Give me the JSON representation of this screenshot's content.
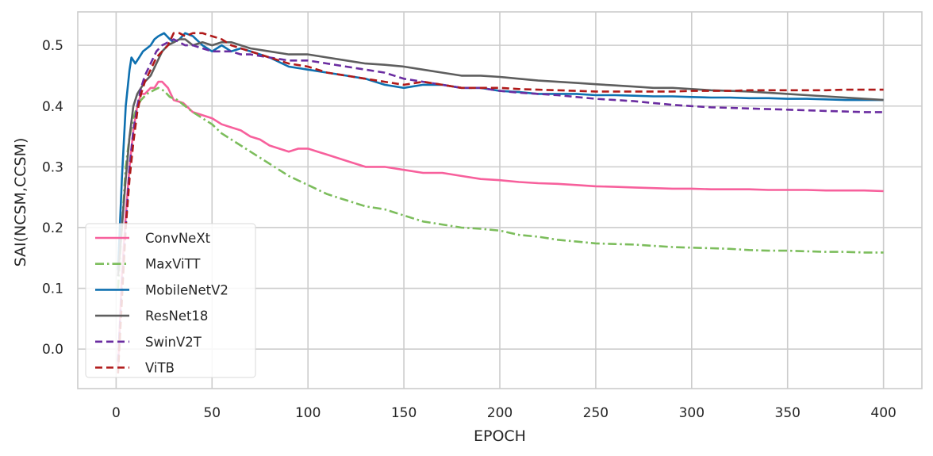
{
  "chart_data": {
    "type": "line",
    "title": "",
    "xlabel": "EPOCH",
    "ylabel": "SAI(NCSM,CCSM)",
    "xlim": [
      -20,
      420
    ],
    "ylim": [
      -0.065,
      0.555
    ],
    "xticks": [
      0,
      50,
      100,
      150,
      200,
      250,
      300,
      350,
      400
    ],
    "yticks": [
      0.0,
      0.1,
      0.2,
      0.3,
      0.4,
      0.5
    ],
    "xtick_labels": [
      "0",
      "50",
      "100",
      "150",
      "200",
      "250",
      "300",
      "350",
      "400"
    ],
    "ytick_labels": [
      "0.0",
      "0.1",
      "0.2",
      "0.3",
      "0.4",
      "0.5"
    ],
    "grid": true,
    "legend_position": "lower-left",
    "series": [
      {
        "name": "ConvNeXt",
        "color": "#f7609c",
        "dash": "solid",
        "x": [
          1,
          3,
          5,
          7,
          9,
          11,
          13,
          15,
          18,
          20,
          22,
          24,
          27,
          30,
          35,
          40,
          45,
          50,
          55,
          60,
          65,
          70,
          75,
          80,
          85,
          90,
          95,
          100,
          105,
          110,
          120,
          130,
          140,
          150,
          160,
          170,
          180,
          190,
          200,
          210,
          220,
          230,
          240,
          250,
          260,
          270,
          280,
          290,
          300,
          310,
          320,
          330,
          340,
          350,
          360,
          370,
          380,
          390,
          400
        ],
        "y": [
          -0.03,
          0.12,
          0.22,
          0.3,
          0.36,
          0.4,
          0.42,
          0.42,
          0.43,
          0.43,
          0.44,
          0.44,
          0.43,
          0.41,
          0.405,
          0.39,
          0.385,
          0.38,
          0.37,
          0.365,
          0.36,
          0.35,
          0.345,
          0.335,
          0.33,
          0.325,
          0.33,
          0.33,
          0.325,
          0.32,
          0.31,
          0.3,
          0.3,
          0.295,
          0.29,
          0.29,
          0.285,
          0.28,
          0.278,
          0.275,
          0.273,
          0.272,
          0.27,
          0.268,
          0.267,
          0.266,
          0.265,
          0.264,
          0.264,
          0.263,
          0.263,
          0.263,
          0.262,
          0.262,
          0.262,
          0.261,
          0.261,
          0.261,
          0.26
        ]
      },
      {
        "name": "MaxViTT",
        "color": "#7cbd5c",
        "dash": "dashdot",
        "x": [
          1,
          3,
          5,
          7,
          9,
          11,
          13,
          16,
          19,
          22,
          25,
          28,
          32,
          36,
          40,
          45,
          50,
          55,
          60,
          65,
          70,
          80,
          90,
          100,
          110,
          120,
          130,
          140,
          150,
          160,
          170,
          180,
          190,
          200,
          210,
          220,
          230,
          240,
          250,
          260,
          270,
          280,
          290,
          300,
          310,
          320,
          330,
          340,
          350,
          360,
          370,
          380,
          390,
          400
        ],
        "y": [
          0.1,
          0.2,
          0.3,
          0.35,
          0.38,
          0.4,
          0.41,
          0.42,
          0.425,
          0.43,
          0.425,
          0.415,
          0.41,
          0.4,
          0.39,
          0.38,
          0.37,
          0.355,
          0.345,
          0.335,
          0.325,
          0.305,
          0.285,
          0.27,
          0.255,
          0.245,
          0.235,
          0.23,
          0.22,
          0.21,
          0.205,
          0.2,
          0.198,
          0.195,
          0.188,
          0.185,
          0.18,
          0.177,
          0.174,
          0.173,
          0.172,
          0.17,
          0.168,
          0.167,
          0.166,
          0.165,
          0.163,
          0.162,
          0.162,
          0.161,
          0.16,
          0.16,
          0.159,
          0.159
        ]
      },
      {
        "name": "MobileNetV2",
        "color": "#0e70b0",
        "dash": "solid",
        "x": [
          1,
          3,
          5,
          7,
          8,
          10,
          12,
          14,
          16,
          18,
          20,
          22,
          25,
          28,
          30,
          33,
          36,
          40,
          45,
          50,
          55,
          60,
          65,
          70,
          80,
          90,
          100,
          110,
          120,
          130,
          140,
          150,
          160,
          170,
          180,
          190,
          200,
          210,
          220,
          230,
          240,
          250,
          260,
          270,
          280,
          290,
          300,
          310,
          320,
          330,
          340,
          350,
          360,
          370,
          380,
          390,
          400
        ],
        "y": [
          0.13,
          0.28,
          0.4,
          0.46,
          0.48,
          0.47,
          0.48,
          0.49,
          0.495,
          0.5,
          0.51,
          0.515,
          0.52,
          0.51,
          0.505,
          0.51,
          0.52,
          0.515,
          0.5,
          0.49,
          0.5,
          0.49,
          0.495,
          0.49,
          0.48,
          0.465,
          0.46,
          0.455,
          0.45,
          0.445,
          0.435,
          0.43,
          0.435,
          0.435,
          0.43,
          0.43,
          0.425,
          0.423,
          0.42,
          0.42,
          0.42,
          0.418,
          0.418,
          0.417,
          0.416,
          0.416,
          0.415,
          0.414,
          0.414,
          0.413,
          0.413,
          0.412,
          0.412,
          0.411,
          0.41,
          0.41,
          0.41
        ]
      },
      {
        "name": "ResNet18",
        "color": "#5e5e5e",
        "dash": "solid",
        "x": [
          1,
          3,
          5,
          7,
          9,
          11,
          13,
          15,
          18,
          21,
          24,
          27,
          30,
          33,
          36,
          40,
          45,
          50,
          55,
          60,
          65,
          70,
          80,
          90,
          100,
          110,
          120,
          130,
          140,
          150,
          160,
          170,
          180,
          190,
          200,
          210,
          220,
          230,
          240,
          250,
          260,
          270,
          280,
          290,
          300,
          310,
          320,
          330,
          340,
          350,
          360,
          370,
          380,
          390,
          400
        ],
        "y": [
          0.12,
          0.2,
          0.28,
          0.35,
          0.4,
          0.42,
          0.43,
          0.44,
          0.45,
          0.47,
          0.49,
          0.5,
          0.505,
          0.51,
          0.51,
          0.5,
          0.505,
          0.5,
          0.505,
          0.505,
          0.5,
          0.495,
          0.49,
          0.485,
          0.485,
          0.48,
          0.475,
          0.47,
          0.468,
          0.465,
          0.46,
          0.455,
          0.45,
          0.45,
          0.448,
          0.445,
          0.442,
          0.44,
          0.438,
          0.436,
          0.434,
          0.432,
          0.43,
          0.43,
          0.428,
          0.426,
          0.425,
          0.424,
          0.422,
          0.42,
          0.418,
          0.416,
          0.414,
          0.412,
          0.41
        ]
      },
      {
        "name": "SwinV2T",
        "color": "#6a2ca0",
        "dash": "dashed",
        "x": [
          1,
          3,
          5,
          7,
          9,
          11,
          13,
          15,
          18,
          21,
          24,
          27,
          30,
          33,
          36,
          40,
          45,
          50,
          55,
          60,
          65,
          70,
          80,
          90,
          100,
          110,
          120,
          130,
          140,
          150,
          160,
          170,
          180,
          190,
          200,
          210,
          220,
          230,
          240,
          250,
          260,
          270,
          280,
          290,
          300,
          310,
          320,
          330,
          340,
          350,
          360,
          370,
          380,
          390,
          400
        ],
        "y": [
          -0.02,
          0.1,
          0.2,
          0.3,
          0.36,
          0.4,
          0.43,
          0.45,
          0.47,
          0.49,
          0.5,
          0.505,
          0.51,
          0.505,
          0.5,
          0.5,
          0.495,
          0.49,
          0.49,
          0.49,
          0.485,
          0.485,
          0.48,
          0.475,
          0.475,
          0.47,
          0.465,
          0.46,
          0.455,
          0.445,
          0.44,
          0.435,
          0.43,
          0.43,
          0.425,
          0.422,
          0.42,
          0.418,
          0.415,
          0.412,
          0.41,
          0.408,
          0.405,
          0.402,
          0.4,
          0.398,
          0.397,
          0.396,
          0.395,
          0.394,
          0.393,
          0.392,
          0.391,
          0.39,
          0.39
        ]
      },
      {
        "name": "ViTB",
        "color": "#b01a1a",
        "dash": "dashed",
        "x": [
          1,
          3,
          5,
          7,
          9,
          11,
          13,
          15,
          18,
          21,
          24,
          27,
          30,
          33,
          36,
          40,
          45,
          50,
          55,
          60,
          65,
          70,
          80,
          90,
          100,
          110,
          120,
          130,
          140,
          150,
          160,
          170,
          180,
          190,
          200,
          210,
          220,
          230,
          240,
          250,
          260,
          270,
          280,
          290,
          300,
          310,
          320,
          330,
          340,
          350,
          360,
          370,
          380,
          390,
          400
        ],
        "y": [
          -0.04,
          0.08,
          0.2,
          0.28,
          0.34,
          0.39,
          0.42,
          0.44,
          0.46,
          0.48,
          0.49,
          0.5,
          0.52,
          0.52,
          0.515,
          0.52,
          0.52,
          0.515,
          0.51,
          0.5,
          0.495,
          0.49,
          0.48,
          0.47,
          0.465,
          0.455,
          0.45,
          0.445,
          0.44,
          0.435,
          0.44,
          0.435,
          0.43,
          0.43,
          0.43,
          0.428,
          0.427,
          0.426,
          0.425,
          0.424,
          0.424,
          0.424,
          0.424,
          0.424,
          0.425,
          0.425,
          0.425,
          0.426,
          0.426,
          0.426,
          0.426,
          0.426,
          0.427,
          0.427,
          0.427
        ]
      }
    ]
  }
}
